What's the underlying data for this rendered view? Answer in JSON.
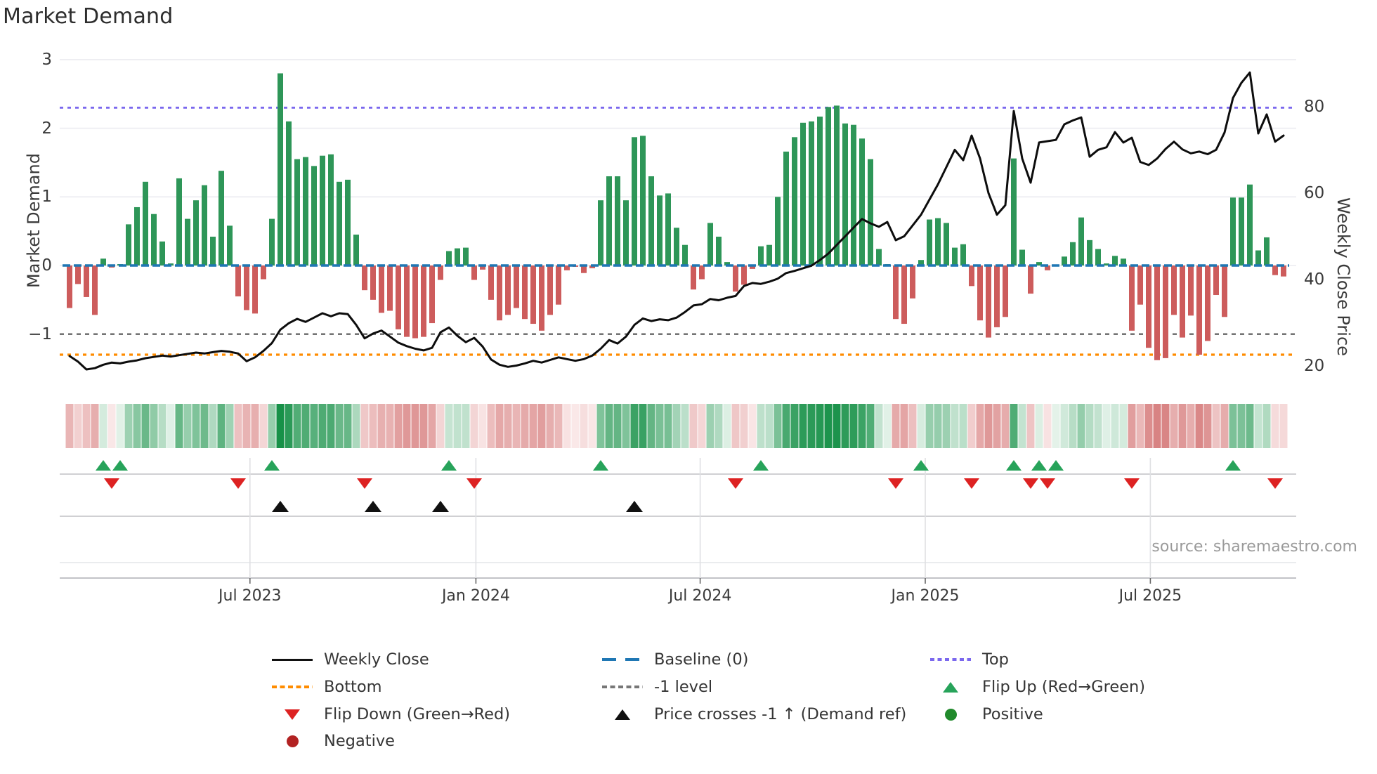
{
  "title": "Market Demand",
  "source": "source: sharemaestro.com",
  "axes": {
    "left_title": "Market Demand",
    "right_title": "Weekly Close Price",
    "left_ticks": [
      {
        "label": "3",
        "value": 3
      },
      {
        "label": "2",
        "value": 2
      },
      {
        "label": "1",
        "value": 1
      },
      {
        "label": "0",
        "value": 0
      },
      {
        "label": "−1",
        "value": -1
      }
    ],
    "right_ticks": [
      {
        "label": "80",
        "value": 80
      },
      {
        "label": "60",
        "value": 60
      },
      {
        "label": "40",
        "value": 40
      },
      {
        "label": "20",
        "value": 20
      }
    ]
  },
  "colors": {
    "bar_positive": "#2e9658",
    "bar_negative": "#cd5c5c",
    "price_line": "#0d0d0d",
    "baseline": "#1f77b4",
    "top_line": "#7b68ee",
    "minus1_line": "#666666",
    "bottom_line": "#ff8c00",
    "flip_up": "#27a35a",
    "flip_down": "#dd2222",
    "price_cross": "#111111"
  },
  "chart_data": {
    "type": "combo_bar_line_heatmap",
    "title": "Market Demand",
    "x_description": "weekly data, Feb 2023 - Oct 2025",
    "ylabel_left": "Market Demand",
    "ylabel_right": "Weekly Close Price",
    "ylim_left": [
      -1.55,
      3.1
    ],
    "right_ticks": [
      20,
      40,
      60,
      80
    ],
    "grid_left_ticks": [
      3,
      2,
      1,
      0
    ],
    "ref_lines": {
      "top": 2.3,
      "baseline": 0,
      "minus1": -1,
      "bottom": -1.3
    },
    "x_ticks": [
      {
        "label": "Jul 2023",
        "index": 21.4
      },
      {
        "label": "Jan 2024",
        "index": 48.2
      },
      {
        "label": "Jul 2024",
        "index": 74.8
      },
      {
        "label": "Jan 2025",
        "index": 101.5
      },
      {
        "label": "Jul 2025",
        "index": 128.2
      }
    ],
    "series": [
      {
        "name": "Market Demand",
        "type": "bar",
        "axis": "left",
        "values": [
          -0.62,
          -0.27,
          -0.46,
          -0.72,
          0.1,
          -0.03,
          0.02,
          0.6,
          0.85,
          1.22,
          0.75,
          0.35,
          0.03,
          1.27,
          0.68,
          0.95,
          1.17,
          0.42,
          1.38,
          0.58,
          -0.45,
          -0.65,
          -0.7,
          -0.2,
          0.68,
          2.8,
          2.1,
          1.55,
          1.58,
          1.45,
          1.6,
          1.62,
          1.22,
          1.25,
          0.45,
          -0.36,
          -0.5,
          -0.69,
          -0.66,
          -0.93,
          -1.04,
          -1.06,
          -1.04,
          -0.84,
          -0.21,
          0.21,
          0.25,
          0.26,
          -0.21,
          -0.06,
          -0.5,
          -0.8,
          -0.72,
          -0.62,
          -0.78,
          -0.85,
          -0.95,
          -0.72,
          -0.57,
          -0.07,
          -0.02,
          -0.11,
          -0.04,
          0.95,
          1.3,
          1.3,
          0.95,
          1.87,
          1.89,
          1.3,
          1.02,
          1.05,
          0.55,
          0.3,
          -0.35,
          -0.2,
          0.62,
          0.42,
          0.05,
          -0.38,
          -0.28,
          -0.05,
          0.28,
          0.3,
          1.0,
          1.66,
          1.87,
          2.08,
          2.1,
          2.17,
          2.31,
          2.33,
          2.07,
          2.05,
          1.85,
          1.55,
          0.24,
          0.02,
          -0.78,
          -0.85,
          -0.48,
          0.08,
          0.67,
          0.69,
          0.62,
          0.26,
          0.31,
          -0.3,
          -0.8,
          -1.05,
          -0.9,
          -0.75,
          1.56,
          0.23,
          -0.41,
          0.05,
          -0.07,
          0.01,
          0.13,
          0.34,
          0.7,
          0.37,
          0.24,
          0.03,
          0.14,
          0.1,
          -0.95,
          -0.57,
          -1.2,
          -1.38,
          -1.35,
          -0.72,
          -1.05,
          -0.73,
          -1.3,
          -1.1,
          -0.43,
          -0.75,
          0.99,
          0.99,
          1.18,
          0.22,
          0.41,
          -0.14,
          -0.16
        ]
      },
      {
        "name": "Weekly Close",
        "type": "line",
        "axis": "right",
        "values": [
          22.3,
          21.0,
          19.2,
          19.5,
          20.3,
          20.8,
          20.6,
          21.0,
          21.3,
          21.8,
          22.1,
          22.4,
          22.2,
          22.5,
          22.8,
          23.1,
          22.9,
          23.2,
          23.5,
          23.3,
          22.9,
          21.1,
          22.0,
          23.5,
          25.3,
          28.4,
          29.9,
          30.9,
          30.2,
          31.2,
          32.2,
          31.5,
          32.2,
          32.0,
          29.5,
          26.4,
          27.5,
          28.2,
          26.8,
          25.4,
          24.6,
          24.0,
          23.6,
          24.2,
          27.8,
          28.9,
          27.0,
          25.5,
          26.5,
          24.5,
          21.5,
          20.3,
          19.8,
          20.1,
          20.6,
          21.2,
          20.8,
          21.4,
          22.0,
          21.6,
          21.2,
          21.6,
          22.4,
          24.0,
          26.0,
          25.2,
          26.8,
          29.5,
          31.0,
          30.4,
          30.8,
          30.6,
          31.2,
          32.5,
          34.0,
          34.3,
          35.5,
          35.2,
          35.8,
          36.2,
          38.5,
          39.2,
          39.0,
          39.5,
          40.2,
          41.5,
          42.0,
          42.6,
          43.2,
          44.5,
          46.0,
          48.0,
          50.0,
          52.0,
          54.0,
          53.0,
          52.2,
          53.3,
          49.1,
          50.0,
          52.5,
          55.0,
          58.5,
          62.0,
          66.0,
          70.0,
          67.6,
          73.3,
          68.0,
          60.0,
          55.0,
          57.2,
          79.0,
          68.0,
          62.4,
          71.7,
          72.0,
          72.3,
          75.9,
          76.8,
          77.5,
          68.4,
          70.0,
          70.6,
          74.1,
          71.7,
          72.8,
          67.2,
          66.5,
          68.0,
          70.2,
          71.9,
          70.1,
          69.2,
          69.6,
          69.0,
          70.0,
          74.0,
          82.0,
          85.5,
          87.9,
          73.8,
          78.2,
          71.9,
          73.3
        ]
      }
    ],
    "heatmap": {
      "note": "strip below chart: cell color = sign of Market Demand (green positive / pink negative), shade intensity = magnitude"
    },
    "markers": {
      "flip_up_indexes": [
        4,
        6,
        24,
        45,
        63,
        82,
        101,
        112,
        115,
        117,
        138
      ],
      "flip_down_indexes": [
        5,
        20,
        35,
        48,
        79,
        98,
        107,
        114,
        116,
        126,
        143
      ],
      "price_cross_up_indexes": [
        25,
        36,
        44,
        67
      ]
    }
  },
  "legend": {
    "columns": [
      {
        "items": [
          {
            "label": "Weekly Close",
            "symbol": "line-black"
          },
          {
            "label": "Bottom",
            "symbol": "dash-orange"
          },
          {
            "label": "Flip Down (Green→Red)",
            "symbol": "tri-down-red"
          },
          {
            "label": "Negative",
            "symbol": "dot-darkred"
          }
        ]
      },
      {
        "items": [
          {
            "label": "Baseline (0)",
            "symbol": "dash-blue"
          },
          {
            "label": "-1 level",
            "symbol": "dash-gray"
          },
          {
            "label": "Price crosses -1 ↑ (Demand ref)",
            "symbol": "tri-up-black"
          }
        ]
      },
      {
        "items": [
          {
            "label": "Top",
            "symbol": "dash-purple"
          },
          {
            "label": "Flip Up (Red→Green)",
            "symbol": "tri-up-green"
          },
          {
            "label": "Positive",
            "symbol": "dot-green"
          }
        ]
      }
    ]
  }
}
